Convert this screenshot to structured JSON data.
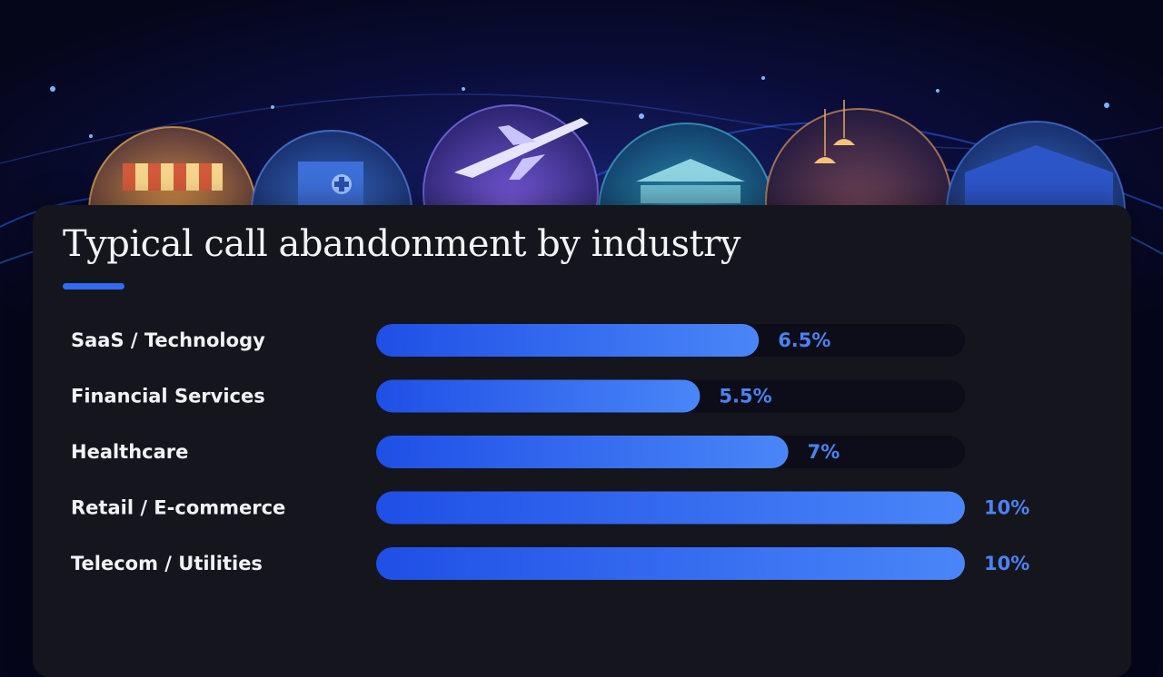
{
  "title": "Typical call abandonment by industry",
  "colors": {
    "bar_start": "#1f4fe6",
    "bar_end": "#4a86f8",
    "track": "#0c0d18",
    "value_text": "#4b82f4",
    "card_bg": "#14151d",
    "accent": "#2f6cf2"
  },
  "hero_icons": [
    "storefront-icon",
    "hospital-icon",
    "airplane-icon",
    "bank-icon",
    "cafe-icon",
    "warehouse-icon"
  ],
  "chart_data": {
    "type": "bar",
    "orientation": "horizontal",
    "title": "Typical call abandonment by industry",
    "categories": [
      "SaaS / Technology",
      "Financial Services",
      "Healthcare",
      "Retail / E-commerce",
      "Telecom / Utilities"
    ],
    "values": [
      6.5,
      5.5,
      7,
      10,
      10
    ],
    "value_labels": [
      "6.5%",
      "5.5%",
      "7%",
      "10%",
      "10%"
    ],
    "xlim": [
      0,
      10
    ],
    "grid": false,
    "legend": "none"
  }
}
